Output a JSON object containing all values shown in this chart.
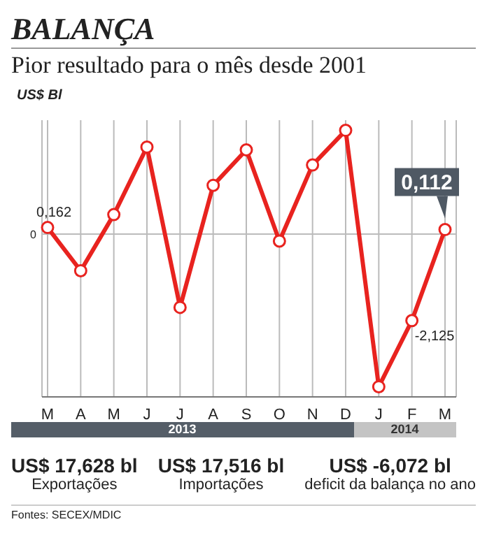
{
  "chart_data": {
    "type": "line",
    "title": "BALANÇA",
    "subtitle": "Pior resultado para o mês desde 2001",
    "ylabel": "US$ Bl",
    "categories": [
      "M",
      "A",
      "M",
      "J",
      "J",
      "A",
      "S",
      "O",
      "N",
      "D",
      "J",
      "F",
      "M"
    ],
    "series": [
      {
        "color": "#e8231f",
        "values": [
          0.162,
          -0.9,
          0.48,
          2.14,
          -1.8,
          1.2,
          2.07,
          -0.17,
          1.7,
          2.55,
          -3.75,
          -2.125,
          0.112
        ],
        "value_labels": [
          "0,162",
          null,
          null,
          null,
          null,
          null,
          null,
          null,
          null,
          null,
          null,
          "-2,125",
          "0,112"
        ]
      }
    ],
    "ylim": [
      -4,
      2.8
    ],
    "grid": "x",
    "marker": "circle",
    "line_style": "solid",
    "ref_lines": [
      {
        "axis": "y",
        "value": 0,
        "label": "0",
        "color": "#bbbbbb"
      }
    ],
    "annotations": [
      "2013",
      "2014",
      "US$ 17,628 bl",
      "Exportações",
      "US$ 17,516 bl",
      "Importações",
      "US$ -6,072 bl",
      "deficit da balança no ano",
      "Fontes: SECEX/MDIC"
    ]
  }
}
